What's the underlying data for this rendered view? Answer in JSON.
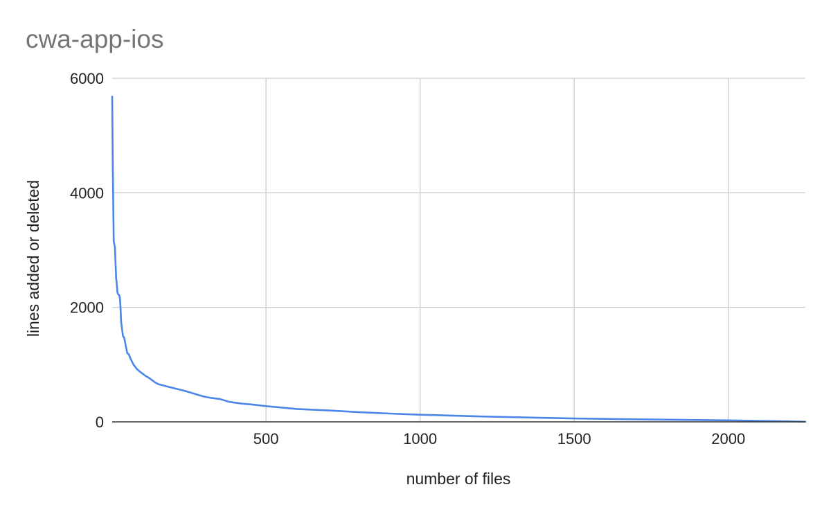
{
  "chart_data": {
    "type": "line",
    "title": "cwa-app-ios",
    "xlabel": "number of files",
    "ylabel": "lines added or deleted",
    "xlim": [
      1,
      2250
    ],
    "ylim": [
      0,
      6000
    ],
    "x_ticks": [
      {
        "value": 500,
        "label": "500"
      },
      {
        "value": 1000,
        "label": "1000"
      },
      {
        "value": 1500,
        "label": "1500"
      },
      {
        "value": 2000,
        "label": "2000"
      }
    ],
    "y_ticks": [
      {
        "value": 0,
        "label": "0"
      },
      {
        "value": 2000,
        "label": "2000"
      },
      {
        "value": 4000,
        "label": "4000"
      },
      {
        "value": 6000,
        "label": "6000"
      }
    ],
    "grid": true,
    "legend": "none",
    "series": [
      {
        "color": "#4a86e8",
        "points": [
          [
            1,
            5680
          ],
          [
            2,
            5100
          ],
          [
            3,
            4450
          ],
          [
            4,
            4000
          ],
          [
            5,
            3550
          ],
          [
            6,
            3150
          ],
          [
            8,
            3100
          ],
          [
            10,
            3050
          ],
          [
            12,
            2750
          ],
          [
            14,
            2500
          ],
          [
            16,
            2400
          ],
          [
            18,
            2260
          ],
          [
            20,
            2230
          ],
          [
            22,
            2220
          ],
          [
            24,
            2210
          ],
          [
            26,
            2160
          ],
          [
            28,
            2000
          ],
          [
            30,
            1750
          ],
          [
            33,
            1620
          ],
          [
            36,
            1500
          ],
          [
            40,
            1470
          ],
          [
            45,
            1330
          ],
          [
            50,
            1200
          ],
          [
            55,
            1180
          ],
          [
            60,
            1110
          ],
          [
            70,
            1000
          ],
          [
            80,
            930
          ],
          [
            90,
            880
          ],
          [
            100,
            840
          ],
          [
            110,
            800
          ],
          [
            120,
            770
          ],
          [
            130,
            730
          ],
          [
            140,
            690
          ],
          [
            150,
            660
          ],
          [
            170,
            630
          ],
          [
            200,
            590
          ],
          [
            230,
            550
          ],
          [
            250,
            520
          ],
          [
            280,
            470
          ],
          [
            300,
            440
          ],
          [
            320,
            420
          ],
          [
            350,
            400
          ],
          [
            380,
            350
          ],
          [
            420,
            320
          ],
          [
            460,
            300
          ],
          [
            500,
            275
          ],
          [
            550,
            250
          ],
          [
            600,
            225
          ],
          [
            700,
            200
          ],
          [
            800,
            170
          ],
          [
            900,
            145
          ],
          [
            1000,
            125
          ],
          [
            1100,
            110
          ],
          [
            1200,
            95
          ],
          [
            1300,
            82
          ],
          [
            1400,
            70
          ],
          [
            1500,
            60
          ],
          [
            1600,
            52
          ],
          [
            1700,
            45
          ],
          [
            1800,
            38
          ],
          [
            1900,
            32
          ],
          [
            2000,
            26
          ],
          [
            2100,
            18
          ],
          [
            2200,
            8
          ],
          [
            2250,
            3
          ]
        ]
      }
    ]
  }
}
